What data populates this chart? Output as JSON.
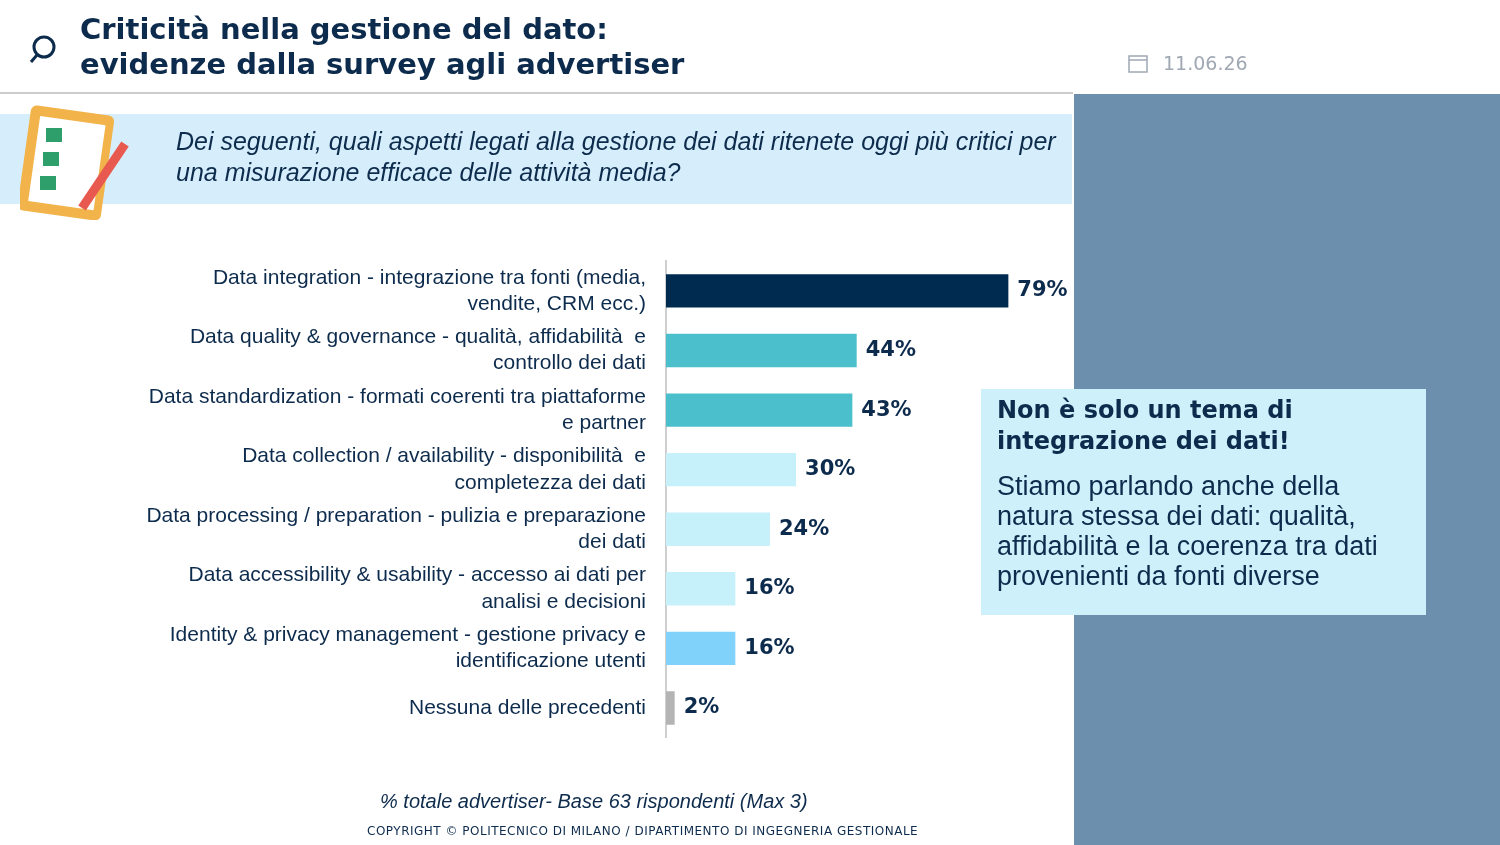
{
  "chart_data": {
    "type": "bar",
    "orientation": "horizontal",
    "title": "Criticità nella gestione del dato:\nevidenze dalla survey agli advertiser",
    "subtitle": "Dei seguenti, quali aspetti legati alla gestione dei dati ritenete oggi più critici per una misurazione efficace delle attività media?",
    "categories": [
      "Data integration - integrazione tra fonti (media, vendite, CRM ecc.)",
      "Data quality & governance - qualità, affidabilità  e controllo dei dati",
      "Data standardization - formati coerenti tra piattaforme e partner",
      "Data collection / availability - disponibilità  e completezza dei dati",
      "Data processing / preparation - pulizia e preparazione dei dati",
      "Data accessibility & usability - accesso ai dati per analisi e decisioni",
      "Identity & privacy management - gestione privacy e identificazione utenti",
      "Nessuna delle precedenti"
    ],
    "values": [
      79,
      44,
      43,
      30,
      24,
      16,
      16,
      2
    ],
    "colors": [
      "#002b50",
      "#4bbfcc",
      "#4bbfcc",
      "#c6f1fb",
      "#c6f1fb",
      "#c6f1fb",
      "#80d2fb",
      "#b4b4b4"
    ],
    "value_labels": [
      "79%",
      "44%",
      "43%",
      "30%",
      "24%",
      "16%",
      "16%",
      "2%"
    ],
    "annotations": [
      "Non è solo un tema di integrazione dei dati!",
      "Stiamo parlando anche della natura stessa dei dati: qualità, affidabilità e la coerenza tra dati provenienti da fonti diverse",
      "% totale advertiser- Base 63 rispondenti (Max 3)",
      "COPYRIGHT © POLITECNICO DI MILANO / DIPARTIMENTO DI INGEGNERIA GESTIONALE",
      "11.06.26"
    ],
    "legend": false
  }
}
